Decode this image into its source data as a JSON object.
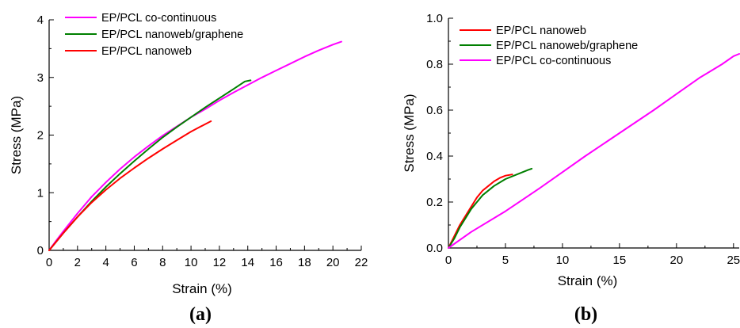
{
  "chart_data": [
    {
      "type": "line",
      "panel_label": "(a)",
      "xlabel": "Strain (%)",
      "ylabel": "Stress (MPa)",
      "xlim": [
        0,
        22
      ],
      "ylim": [
        0,
        4
      ],
      "xticks": [
        0,
        2,
        4,
        6,
        8,
        10,
        12,
        14,
        16,
        18,
        20,
        22
      ],
      "yticks": [
        0,
        1,
        2,
        3,
        4
      ],
      "grid": false,
      "legend_position": "top-left",
      "series": [
        {
          "name": "EP/PCL co-continuous",
          "color": "#ff00ff",
          "x": [
            0,
            0.5,
            1,
            2,
            3,
            4,
            5,
            6,
            7,
            8,
            9,
            10,
            11,
            12,
            13,
            14,
            15,
            16,
            17,
            18,
            19,
            20,
            20.6
          ],
          "y": [
            0,
            0.17,
            0.33,
            0.64,
            0.93,
            1.18,
            1.41,
            1.62,
            1.81,
            1.99,
            2.15,
            2.31,
            2.45,
            2.6,
            2.74,
            2.87,
            3.0,
            3.12,
            3.24,
            3.36,
            3.47,
            3.57,
            3.62
          ]
        },
        {
          "name": "EP/PCL nanoweb/graphene",
          "color": "#007f00",
          "x": [
            0,
            1,
            2,
            3,
            4,
            5,
            6,
            7,
            8,
            9,
            10,
            11,
            12,
            13,
            13.8,
            14.2
          ],
          "y": [
            0,
            0.3,
            0.58,
            0.85,
            1.1,
            1.33,
            1.55,
            1.76,
            1.96,
            2.14,
            2.31,
            2.48,
            2.64,
            2.8,
            2.93,
            2.95
          ]
        },
        {
          "name": "EP/PCL nanoweb",
          "color": "#ff0000",
          "x": [
            0,
            1,
            2,
            3,
            4,
            5,
            6,
            7,
            8,
            9,
            10,
            11,
            11.4
          ],
          "y": [
            0,
            0.3,
            0.58,
            0.83,
            1.05,
            1.25,
            1.43,
            1.6,
            1.76,
            1.91,
            2.06,
            2.19,
            2.24
          ]
        }
      ]
    },
    {
      "type": "line",
      "panel_label": "(b)",
      "xlabel": "Strain (%)",
      "ylabel": "Stress (MPa)",
      "xlim": [
        0,
        25.5
      ],
      "ylim": [
        0,
        1.0
      ],
      "xticks": [
        0,
        5,
        10,
        15,
        20,
        25
      ],
      "yticks": [
        0.0,
        0.2,
        0.4,
        0.6,
        0.8,
        1.0
      ],
      "ytick_labels": [
        "0.0",
        "0.2",
        "0.4",
        "0.6",
        "0.8",
        "1.0"
      ],
      "grid": false,
      "legend_position": "top-left",
      "series": [
        {
          "name": "EP/PCL nanoweb",
          "color": "#ff0000",
          "x": [
            0,
            0.5,
            1,
            1.5,
            2,
            2.5,
            3,
            3.5,
            4,
            4.5,
            5,
            5.6
          ],
          "y": [
            0,
            0.05,
            0.1,
            0.14,
            0.18,
            0.22,
            0.25,
            0.27,
            0.29,
            0.305,
            0.315,
            0.32
          ]
        },
        {
          "name": "EP/PCL nanoweb/graphene",
          "color": "#007f00",
          "x": [
            0,
            0.5,
            1,
            1.5,
            2,
            2.5,
            3,
            4,
            5,
            6,
            7,
            7.3
          ],
          "y": [
            0,
            0.04,
            0.09,
            0.13,
            0.17,
            0.2,
            0.23,
            0.27,
            0.3,
            0.32,
            0.34,
            0.345
          ]
        },
        {
          "name": "EP/PCL co-continuous",
          "color": "#ff00ff",
          "x": [
            0,
            2,
            5,
            8,
            10,
            12,
            15,
            18,
            20,
            22,
            24,
            25,
            25.5
          ],
          "y": [
            0,
            0.07,
            0.16,
            0.26,
            0.33,
            0.4,
            0.5,
            0.6,
            0.67,
            0.74,
            0.8,
            0.835,
            0.845
          ]
        }
      ]
    }
  ]
}
